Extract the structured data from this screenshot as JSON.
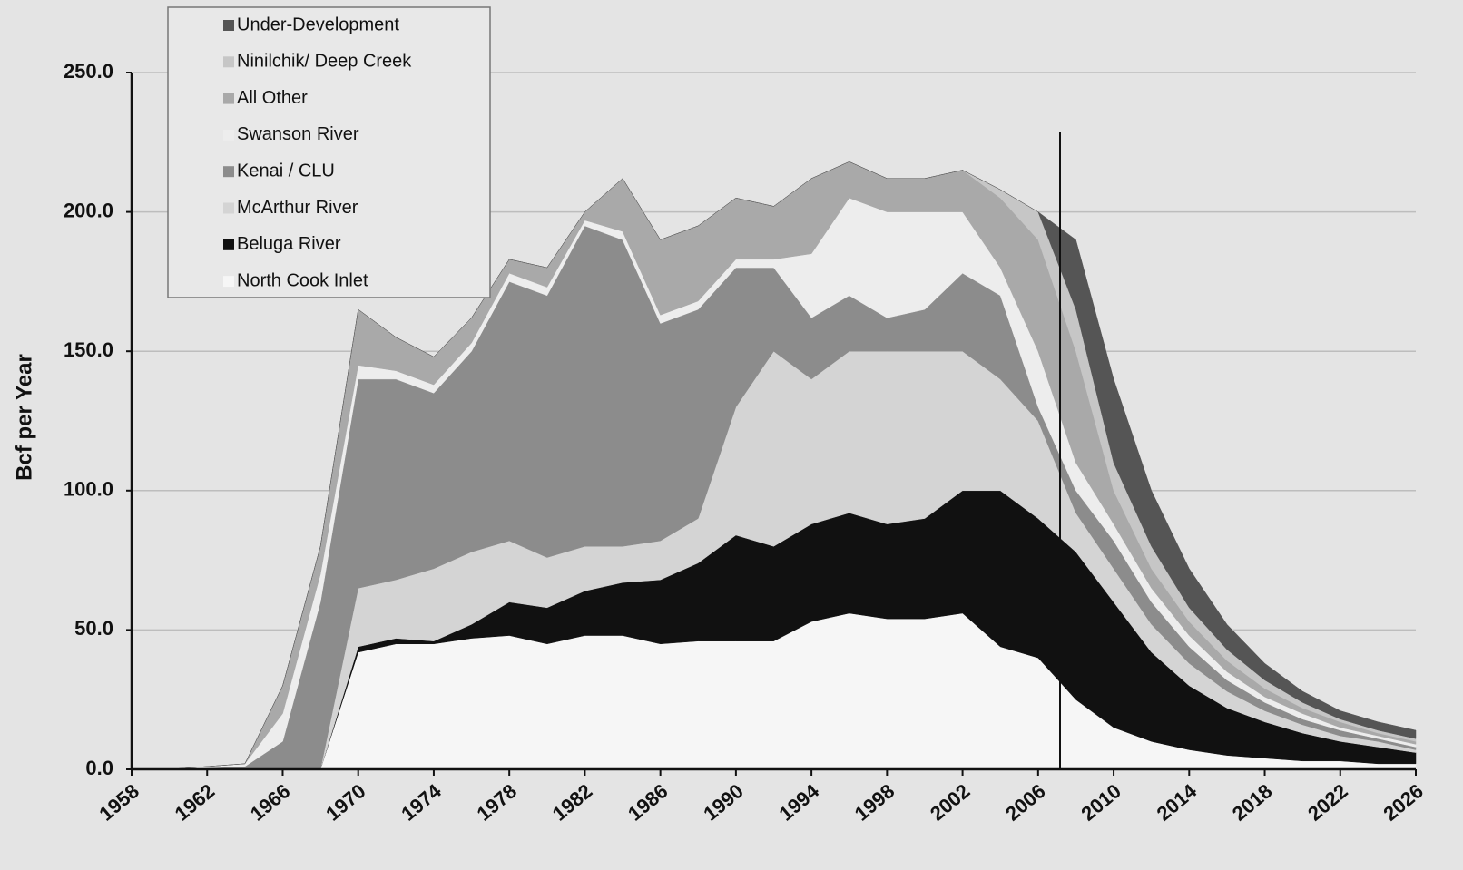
{
  "chart_data": {
    "type": "stacked-area",
    "y_label": "Bcf per Year",
    "x": [
      1958,
      1960,
      1962,
      1964,
      1966,
      1968,
      1970,
      1972,
      1974,
      1976,
      1978,
      1980,
      1982,
      1984,
      1986,
      1988,
      1990,
      1992,
      1994,
      1996,
      1998,
      2000,
      2002,
      2004,
      2006,
      2008,
      2010,
      2012,
      2014,
      2016,
      2018,
      2020,
      2022,
      2024,
      2026
    ],
    "series": [
      {
        "name": "North Cook Inlet",
        "color": "#f6f6f6",
        "values": [
          0,
          0,
          0,
          0,
          0,
          0,
          42,
          45,
          45,
          47,
          48,
          45,
          48,
          48,
          45,
          46,
          46,
          46,
          53,
          56,
          54,
          54,
          56,
          44,
          40,
          25,
          15,
          10,
          7,
          5,
          4,
          3,
          3,
          2,
          2
        ]
      },
      {
        "name": "Beluga River",
        "color": "#111111",
        "values": [
          0,
          0,
          0,
          0,
          0,
          0,
          2,
          2,
          1,
          5,
          12,
          13,
          16,
          19,
          23,
          28,
          38,
          34,
          35,
          36,
          34,
          36,
          44,
          56,
          50,
          53,
          45,
          32,
          23,
          17,
          13,
          10,
          7,
          6,
          4
        ]
      },
      {
        "name": "McArthur River",
        "color": "#d4d4d4",
        "values": [
          0,
          0,
          0,
          0,
          0,
          0,
          21,
          21,
          26,
          26,
          22,
          18,
          16,
          13,
          14,
          16,
          46,
          70,
          52,
          58,
          62,
          60,
          50,
          40,
          35,
          14,
          12,
          10,
          8,
          6,
          4,
          3,
          2,
          2,
          1
        ]
      },
      {
        "name": "Kenai / CLU",
        "color": "#8c8c8c",
        "values": [
          0,
          0,
          0.5,
          1,
          10,
          60,
          75,
          72,
          63,
          72,
          93,
          94,
          115,
          110,
          78,
          75,
          50,
          30,
          22,
          20,
          12,
          15,
          28,
          30,
          5,
          8,
          10,
          8,
          6,
          4,
          3,
          2,
          2,
          1,
          1
        ]
      },
      {
        "name": "Swanson River",
        "color": "#ededed",
        "values": [
          0,
          0,
          0.5,
          1,
          10,
          10,
          5,
          3,
          3,
          3,
          3,
          3,
          2,
          3,
          3,
          3,
          3,
          3,
          23,
          35,
          38,
          35,
          22,
          10,
          20,
          10,
          6,
          5,
          4,
          3,
          2,
          2,
          1,
          1,
          1
        ]
      },
      {
        "name": "All Other",
        "color": "#a9a9a9",
        "values": [
          0,
          0,
          0,
          0,
          10,
          10,
          20,
          12,
          10,
          9,
          5,
          7,
          3,
          19,
          27,
          27,
          22,
          19,
          27,
          13,
          12,
          12,
          15,
          25,
          40,
          40,
          12,
          7,
          5,
          4,
          3,
          2,
          2,
          1,
          1
        ]
      },
      {
        "name": "Ninilchik/ Deep Creek",
        "color": "#c6c6c6",
        "values": [
          0,
          0,
          0,
          0,
          0,
          0,
          0,
          0,
          0,
          0,
          0,
          0,
          0,
          0,
          0,
          0,
          0,
          0,
          0,
          0,
          0,
          0,
          0,
          3,
          10,
          15,
          10,
          8,
          5,
          4,
          3,
          2,
          1,
          1,
          1
        ]
      },
      {
        "name": "Under-Development",
        "color": "#555555",
        "values": [
          0,
          0,
          0,
          0,
          0,
          0,
          0,
          0,
          0,
          0,
          0,
          0,
          0,
          0,
          0,
          0,
          0,
          0,
          0,
          0,
          0,
          0,
          0,
          0,
          0,
          25,
          30,
          20,
          14,
          9,
          6,
          4,
          3,
          3,
          3
        ]
      }
    ],
    "xlim": [
      1958,
      2026
    ],
    "xticks": [
      1958,
      1962,
      1966,
      1970,
      1974,
      1978,
      1982,
      1986,
      1990,
      1994,
      1998,
      2002,
      2006,
      2010,
      2014,
      2018,
      2022,
      2026
    ],
    "ylim": [
      0,
      250
    ],
    "yticks": [
      {
        "value": 0,
        "label": "0.0"
      },
      {
        "value": 50,
        "label": "50.0"
      },
      {
        "value": 100,
        "label": "100.0"
      },
      {
        "value": 150,
        "label": "150.0"
      },
      {
        "value": 200,
        "label": "200.0"
      },
      {
        "value": 250,
        "label": "250.0"
      }
    ],
    "grid": true
  }
}
